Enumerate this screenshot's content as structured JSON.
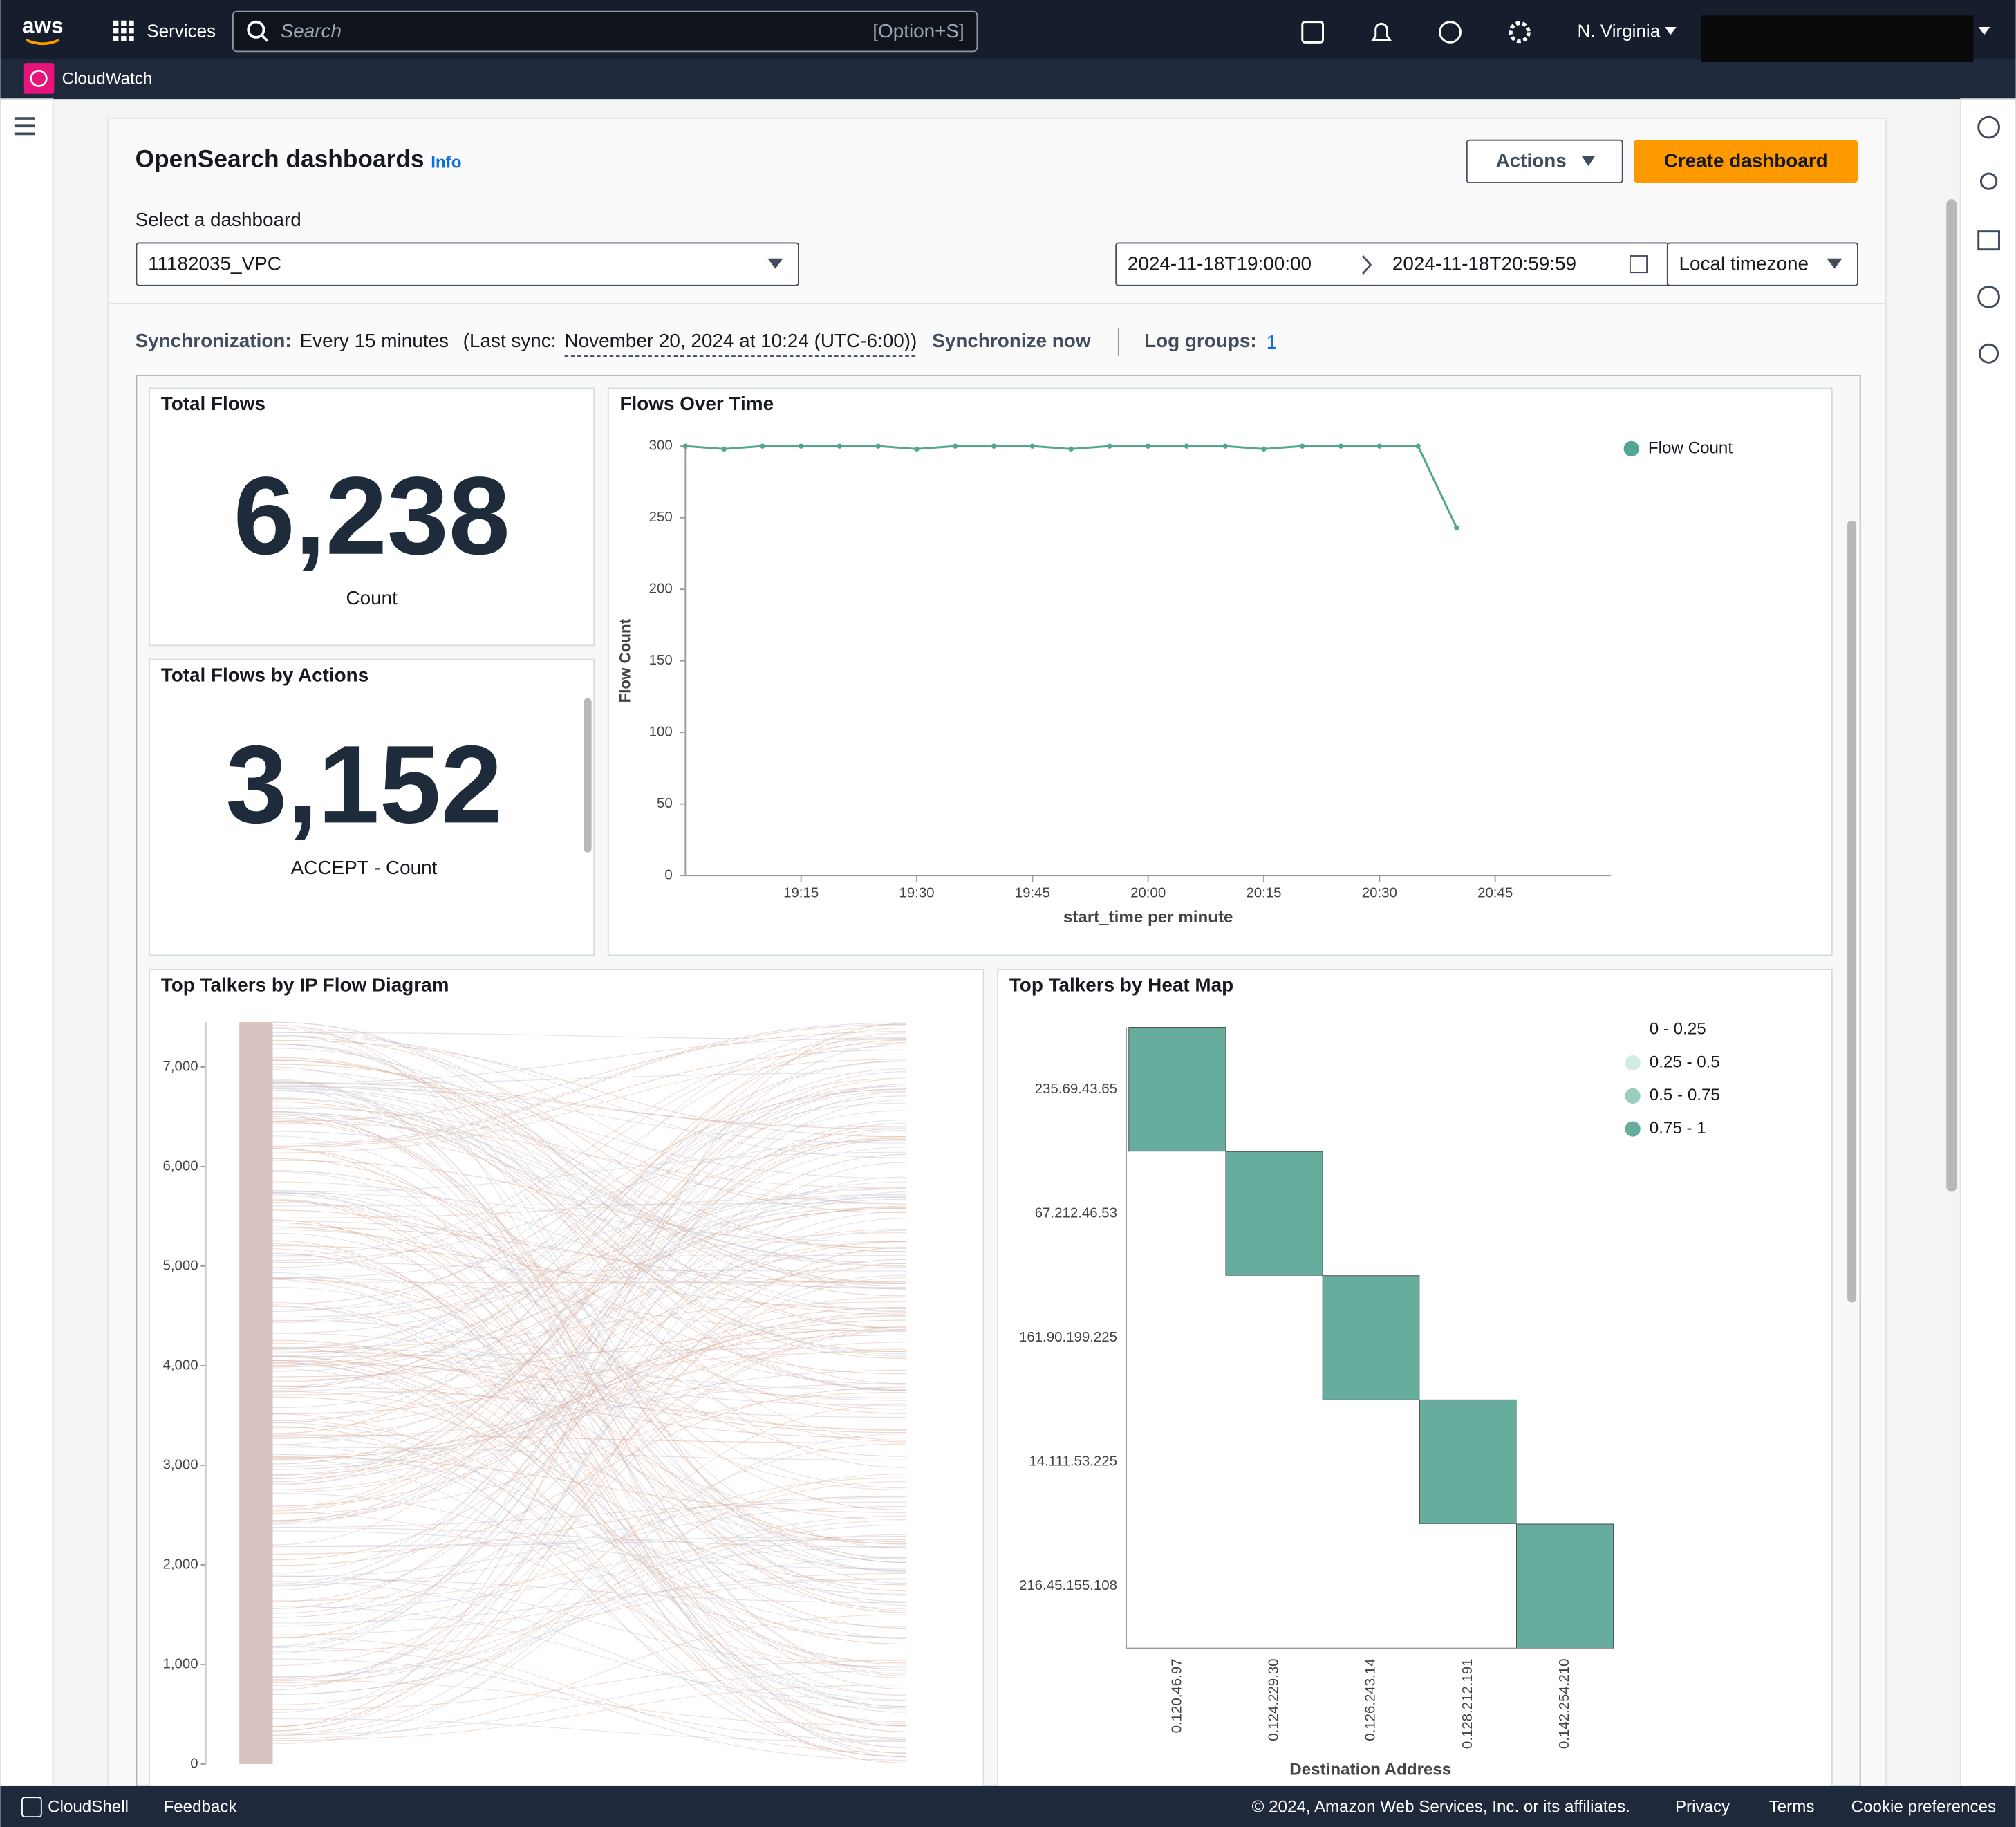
{
  "top_nav": {
    "logo": "aws",
    "services": "Services",
    "search_placeholder": "Search",
    "search_shortcut": "[Option+S]",
    "region": "N. Virginia"
  },
  "service_bar": {
    "name": "CloudWatch"
  },
  "header": {
    "title": "OpenSearch dashboards",
    "info": "Info",
    "actions": "Actions",
    "create": "Create dashboard"
  },
  "dashboard_select": {
    "label": "Select a dashboard",
    "value": "11182035_VPC"
  },
  "time_range": {
    "start": "2024-11-18T19:00:00",
    "end": "2024-11-18T20:59:59",
    "timezone": "Local timezone"
  },
  "sync": {
    "label": "Synchronization:",
    "interval": "Every 15 minutes",
    "last_sync_label": "(Last sync:",
    "last_sync": "November 20, 2024 at 10:24 (UTC-6:00))",
    "sync_now": "Synchronize now",
    "log_groups_label": "Log groups:",
    "log_groups": "1"
  },
  "widgets": {
    "total_flows": {
      "title": "Total Flows",
      "value": "6,238",
      "caption": "Count"
    },
    "flows_by_actions": {
      "title": "Total Flows by Actions",
      "value": "3,152",
      "caption": "ACCEPT - Count"
    }
  },
  "chart_data": [
    {
      "type": "line",
      "title": "Flows Over Time",
      "x_label": "start_time per minute",
      "y_label": "Flow Count",
      "x": [
        "19:00",
        "19:05",
        "19:10",
        "19:15",
        "19:20",
        "19:25",
        "19:30",
        "19:35",
        "19:40",
        "19:45",
        "19:50",
        "19:55",
        "20:00",
        "20:05",
        "20:10",
        "20:15",
        "20:20",
        "20:25",
        "20:30",
        "20:35",
        "20:40"
      ],
      "series": [
        {
          "name": "Flow Count",
          "color": "#52a58e",
          "values": [
            300,
            298,
            300,
            300,
            300,
            300,
            298,
            300,
            300,
            300,
            298,
            300,
            300,
            300,
            300,
            298,
            300,
            300,
            300,
            300,
            243
          ]
        }
      ],
      "xlim": [
        "19:00",
        "21:00"
      ],
      "xticks": [
        "19:15",
        "19:30",
        "19:45",
        "20:00",
        "20:15",
        "20:30",
        "20:45"
      ],
      "ylim": [
        0,
        300
      ],
      "yticks": [
        0,
        50,
        100,
        150,
        200,
        250,
        300
      ],
      "legend": "top-right"
    },
    {
      "type": "flow",
      "title": "Top Talkers by IP Flow Diagram",
      "ylim": [
        0,
        7450
      ],
      "yticks": [
        0,
        {
          "value": 1000,
          "label": "1,000"
        },
        {
          "value": 2000,
          "label": "2,000"
        },
        {
          "value": 3000,
          "label": "3,000"
        },
        {
          "value": 4000,
          "label": "4,000"
        },
        {
          "value": 5000,
          "label": "5,000"
        },
        {
          "value": 6000,
          "label": "6,000"
        },
        {
          "value": 7000,
          "label": "7,000"
        }
      ]
    },
    {
      "type": "heatmap",
      "title": "Top Talkers by Heat Map",
      "x_label": "Destination Address",
      "x": [
        "0.120.46.97",
        "0.124.229.30",
        "0.126.243.14",
        "0.128.212.191",
        "0.142.254.210"
      ],
      "y": [
        "235.69.43.65",
        "67.212.46.53",
        "161.90.199.225",
        "14.111.53.225",
        "216.45.155.108"
      ],
      "values": [
        [
          1,
          0,
          0,
          0,
          0
        ],
        [
          0,
          1,
          0,
          0,
          0
        ],
        [
          0,
          0,
          1,
          0,
          0
        ],
        [
          0,
          0,
          0,
          1,
          0
        ],
        [
          0,
          0,
          0,
          0,
          1
        ]
      ],
      "bins": [
        0,
        0.25,
        0.5,
        0.75,
        1
      ],
      "legend": [
        {
          "label": "0 - 0.25",
          "color": "#ffffff"
        },
        {
          "label": "0.25 - 0.5",
          "color": "#d3ebe5"
        },
        {
          "label": "0.5 - 0.75",
          "color": "#99cfc1"
        },
        {
          "label": "0.75 - 1",
          "color": "#66ad9d"
        }
      ]
    }
  ],
  "footer": {
    "cloudshell": "CloudShell",
    "feedback": "Feedback",
    "copyright": "© 2024, Amazon Web Services, Inc. or its affiliates.",
    "privacy": "Privacy",
    "terms": "Terms",
    "cookies": "Cookie preferences"
  }
}
